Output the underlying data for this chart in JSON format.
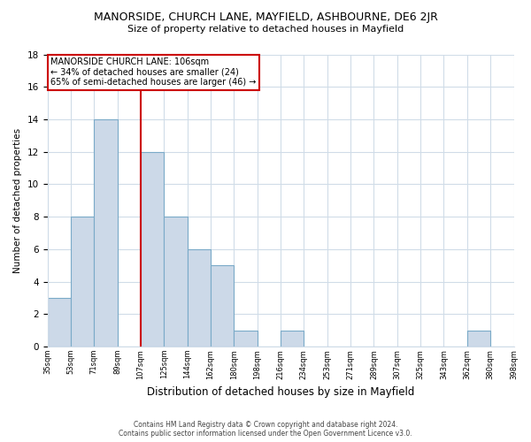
{
  "title": "MANORSIDE, CHURCH LANE, MAYFIELD, ASHBOURNE, DE6 2JR",
  "subtitle": "Size of property relative to detached houses in Mayfield",
  "xlabel": "Distribution of detached houses by size in Mayfield",
  "ylabel": "Number of detached properties",
  "bin_labels": [
    "35sqm",
    "53sqm",
    "71sqm",
    "89sqm",
    "107sqm",
    "125sqm",
    "144sqm",
    "162sqm",
    "180sqm",
    "198sqm",
    "216sqm",
    "234sqm",
    "253sqm",
    "271sqm",
    "289sqm",
    "307sqm",
    "325sqm",
    "343sqm",
    "362sqm",
    "380sqm",
    "398sqm"
  ],
  "bar_heights": [
    3,
    8,
    14,
    0,
    12,
    8,
    6,
    5,
    1,
    0,
    1,
    0,
    0,
    0,
    0,
    0,
    0,
    0,
    1,
    0
  ],
  "bar_fill_color": "#ccd9e8",
  "bar_edge_color": "#7aaac8",
  "annotation_line1": "MANORSIDE CHURCH LANE: 106sqm",
  "annotation_line2": "← 34% of detached houses are smaller (24)",
  "annotation_line3": "65% of semi-detached houses are larger (46) →",
  "vline_color": "#cc0000",
  "vline_x": 4.0,
  "annotation_box_facecolor": "#ffffff",
  "annotation_box_edgecolor": "#cc0000",
  "ylim": [
    0,
    18
  ],
  "yticks": [
    0,
    2,
    4,
    6,
    8,
    10,
    12,
    14,
    16,
    18
  ],
  "footer_line1": "Contains HM Land Registry data © Crown copyright and database right 2024.",
  "footer_line2": "Contains public sector information licensed under the Open Government Licence v3.0.",
  "background_color": "#ffffff",
  "grid_color": "#d0dce8"
}
